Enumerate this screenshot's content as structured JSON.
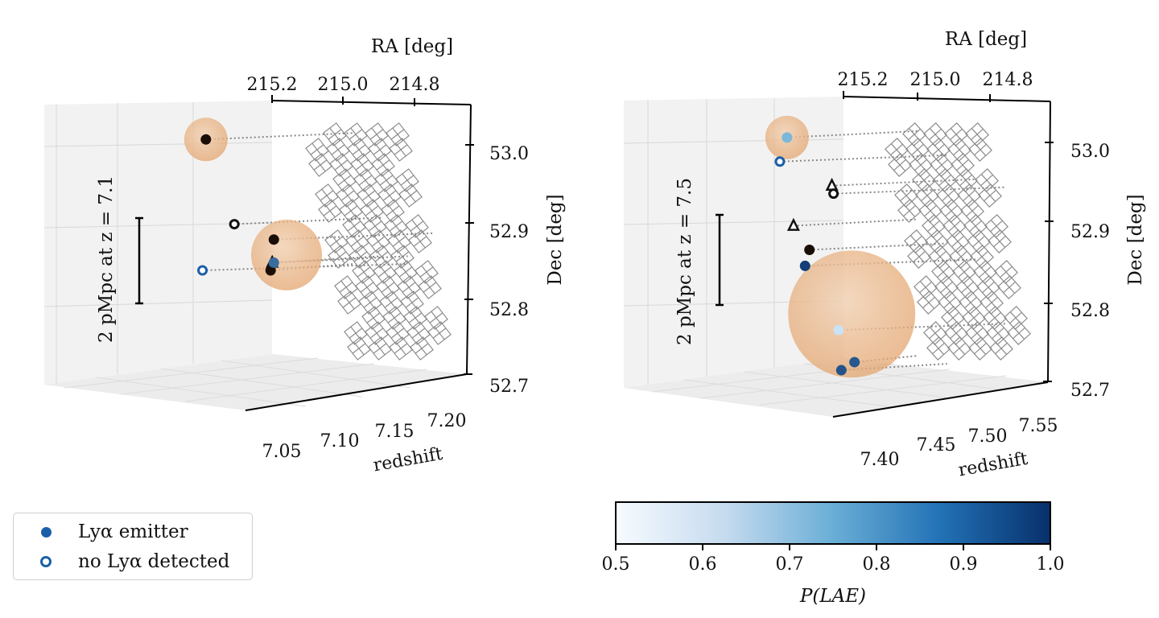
{
  "chart_data": [
    {
      "type": "scatter",
      "panel": "left",
      "projection": "3d",
      "xlabel": "RA [deg]",
      "ylabel": "Dec [deg]",
      "zlabel": "redshift",
      "ra_ticks": [
        "215.2",
        "215.0",
        "214.8"
      ],
      "dec_ticks": [
        "53.0",
        "52.9",
        "52.8",
        "52.7"
      ],
      "z_ticks": [
        "7.05",
        "7.10",
        "7.15",
        "7.20"
      ],
      "ra_range": [
        215.25,
        214.7
      ],
      "dec_range": [
        52.7,
        53.05
      ],
      "z_range": [
        7.04,
        7.22
      ],
      "scale_bar_label": "2 pMpc at z = 7.1",
      "spheres": [
        {
          "ra": 215.22,
          "dec": 53.01,
          "z": 7.08,
          "size": "small"
        },
        {
          "ra": 215.02,
          "dec": 52.86,
          "z": 7.09,
          "size": "medium"
        }
      ],
      "points": [
        {
          "ra": 215.22,
          "dec": 53.01,
          "z": 7.08,
          "kind": "emitter",
          "p_lae": 1.0
        },
        {
          "ra": 215.09,
          "dec": 52.9,
          "z": 7.12,
          "kind": "no-detection"
        },
        {
          "ra": 215.13,
          "dec": 52.84,
          "z": 7.14,
          "kind": "no-detection-blue"
        },
        {
          "ra": 215.0,
          "dec": 52.88,
          "z": 7.12,
          "kind": "emitter",
          "p_lae": 1.0
        },
        {
          "ra": 215.04,
          "dec": 52.84,
          "z": 7.1,
          "kind": "emitter",
          "p_lae": 1.0
        },
        {
          "ra": 215.02,
          "dec": 52.85,
          "z": 7.11,
          "kind": "triangle"
        },
        {
          "ra": 215.0,
          "dec": 52.85,
          "z": 7.12,
          "kind": "emitter",
          "p_lae": 0.88
        }
      ]
    },
    {
      "type": "scatter",
      "panel": "right",
      "projection": "3d",
      "xlabel": "RA [deg]",
      "ylabel": "Dec [deg]",
      "zlabel": "redshift",
      "ra_ticks": [
        "215.2",
        "215.0",
        "214.8"
      ],
      "dec_ticks": [
        "53.0",
        "52.9",
        "52.8",
        "52.7"
      ],
      "z_ticks": [
        "7.40",
        "7.45",
        "7.50",
        "7.55"
      ],
      "ra_range": [
        215.25,
        214.7
      ],
      "dec_range": [
        52.7,
        53.05
      ],
      "z_range": [
        7.38,
        7.56
      ],
      "scale_bar_label": "2 pMpc at z = 7.5",
      "spheres": [
        {
          "ra": 215.2,
          "dec": 53.01,
          "z": 7.43,
          "size": "small"
        },
        {
          "ra": 215.02,
          "dec": 52.79,
          "z": 7.45,
          "size": "large"
        }
      ],
      "points": [
        {
          "ra": 215.2,
          "dec": 53.01,
          "z": 7.43,
          "kind": "emitter",
          "p_lae": 0.72
        },
        {
          "ra": 215.2,
          "dec": 52.98,
          "z": 7.44,
          "kind": "no-detection-blue"
        },
        {
          "ra": 215.0,
          "dec": 52.95,
          "z": 7.49,
          "kind": "triangle"
        },
        {
          "ra": 214.98,
          "dec": 52.94,
          "z": 7.5,
          "kind": "no-detection"
        },
        {
          "ra": 215.12,
          "dec": 52.9,
          "z": 7.47,
          "kind": "triangle"
        },
        {
          "ra": 215.1,
          "dec": 52.87,
          "z": 7.46,
          "kind": "emitter",
          "p_lae": 1.0
        },
        {
          "ra": 215.11,
          "dec": 52.85,
          "z": 7.46,
          "kind": "emitter",
          "p_lae": 0.97
        },
        {
          "ra": 215.05,
          "dec": 52.77,
          "z": 7.45,
          "kind": "emitter",
          "p_lae": 0.58
        },
        {
          "ra": 215.03,
          "dec": 52.73,
          "z": 7.44,
          "kind": "emitter",
          "p_lae": 0.92
        },
        {
          "ra": 215.06,
          "dec": 52.72,
          "z": 7.44,
          "kind": "emitter",
          "p_lae": 0.93
        }
      ]
    }
  ],
  "legend": {
    "items": [
      {
        "label": "Lyα emitter",
        "marker": "filled-circle"
      },
      {
        "label": "no Lyα detected",
        "marker": "open-circle"
      }
    ]
  },
  "colorbar": {
    "label": "P(LAE)",
    "min": 0.5,
    "max": 1.0,
    "ticks": [
      "0.5",
      "0.6",
      "0.7",
      "0.8",
      "0.9",
      "1.0"
    ],
    "colormap": "Blues",
    "color_low": "#f7fbff",
    "color_mid": "#6aaed6",
    "color_high": "#08306b"
  },
  "colors": {
    "sphere_fill": "#e8b07f",
    "point_dark": "#1a0d05",
    "open_blue": "#1a5fa8",
    "footprint": "#8c8c8c"
  }
}
